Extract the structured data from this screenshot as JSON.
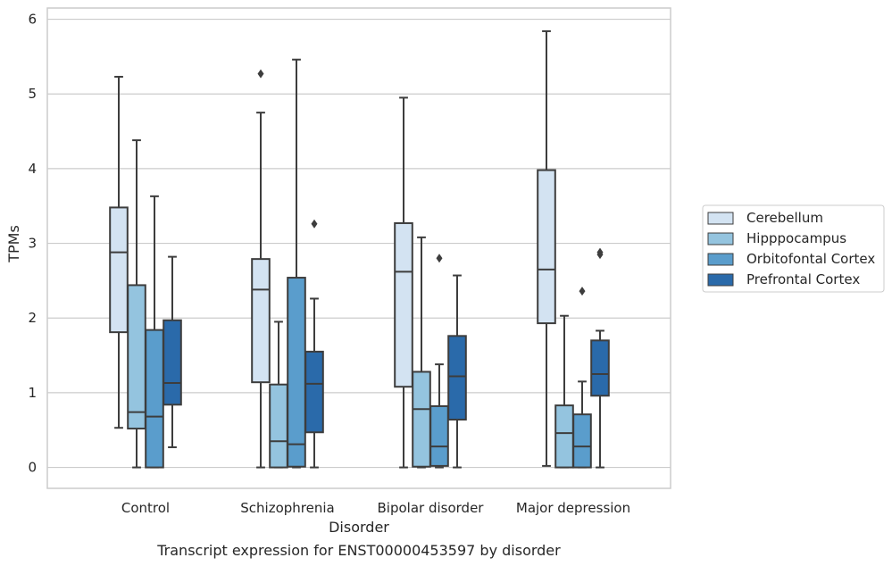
{
  "chart_data": {
    "type": "box",
    "xlabel": "Disorder",
    "ylabel": "TPMs",
    "caption": "Transcript expression for ENST00000453597 by disorder",
    "ylim": [
      -0.28,
      6.15
    ],
    "yticks": [
      0,
      1,
      2,
      3,
      4,
      5,
      6
    ],
    "grid": "horizontal",
    "legend_position": "right",
    "categories": [
      "Control",
      "Schizophrenia",
      "Bipolar disorder",
      "Major depression"
    ],
    "series": [
      {
        "name": "Cerebellum",
        "color": "#d3e3f2",
        "boxes": [
          {
            "whislo": 0.53,
            "q1": 1.81,
            "med": 2.88,
            "q3": 3.48,
            "whishi": 5.23,
            "fliers": []
          },
          {
            "whislo": 0.0,
            "q1": 1.14,
            "med": 2.38,
            "q3": 2.79,
            "whishi": 4.75,
            "fliers": [
              5.27
            ]
          },
          {
            "whislo": 0.0,
            "q1": 1.08,
            "med": 2.62,
            "q3": 3.27,
            "whishi": 4.95,
            "fliers": []
          },
          {
            "whislo": 0.02,
            "q1": 1.93,
            "med": 2.65,
            "q3": 3.98,
            "whishi": 5.84,
            "fliers": []
          }
        ]
      },
      {
        "name": "Hipppocampus",
        "color": "#94c4df",
        "boxes": [
          {
            "whislo": 0.0,
            "q1": 0.52,
            "med": 0.74,
            "q3": 2.44,
            "whishi": 4.38,
            "fliers": []
          },
          {
            "whislo": 0.0,
            "q1": 0.0,
            "med": 0.35,
            "q3": 1.11,
            "whishi": 1.95,
            "fliers": []
          },
          {
            "whislo": 0.0,
            "q1": 0.01,
            "med": 0.78,
            "q3": 1.28,
            "whishi": 3.08,
            "fliers": []
          },
          {
            "whislo": 0.0,
            "q1": 0.0,
            "med": 0.46,
            "q3": 0.83,
            "whishi": 2.03,
            "fliers": []
          }
        ]
      },
      {
        "name": "Orbitofontal Cortex",
        "color": "#5a9dcc",
        "boxes": [
          {
            "whislo": 0.0,
            "q1": 0.0,
            "med": 0.68,
            "q3": 1.84,
            "whishi": 3.63,
            "fliers": []
          },
          {
            "whislo": 0.0,
            "q1": 0.01,
            "med": 0.31,
            "q3": 2.54,
            "whishi": 5.46,
            "fliers": []
          },
          {
            "whislo": 0.0,
            "q1": 0.02,
            "med": 0.28,
            "q3": 0.82,
            "whishi": 1.38,
            "fliers": [
              2.8
            ]
          },
          {
            "whislo": 0.0,
            "q1": 0.0,
            "med": 0.28,
            "q3": 0.71,
            "whishi": 1.15,
            "fliers": [
              2.36
            ]
          }
        ]
      },
      {
        "name": "Prefrontal Cortex",
        "color": "#2a6aaa",
        "boxes": [
          {
            "whislo": 0.27,
            "q1": 0.84,
            "med": 1.13,
            "q3": 1.97,
            "whishi": 2.82,
            "fliers": []
          },
          {
            "whislo": 0.0,
            "q1": 0.47,
            "med": 1.12,
            "q3": 1.55,
            "whishi": 2.26,
            "fliers": [
              3.26
            ]
          },
          {
            "whislo": 0.0,
            "q1": 0.64,
            "med": 1.22,
            "q3": 1.76,
            "whishi": 2.57,
            "fliers": []
          },
          {
            "whislo": 0.0,
            "q1": 0.96,
            "med": 1.25,
            "q3": 1.7,
            "whishi": 1.83,
            "fliers": [
              2.85,
              2.88
            ]
          }
        ]
      }
    ]
  }
}
